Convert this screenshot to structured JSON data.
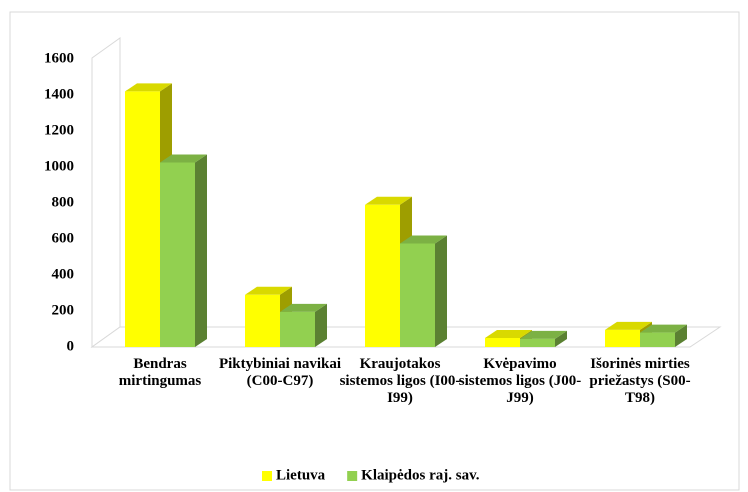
{
  "chart_data": {
    "type": "bar3d",
    "categories": [
      "Bendras mirtingumas",
      "Piktybiniai navikai (C00-C97)",
      "Kraujotakos sistemos ligos (I00-I99)",
      "Kvėpavimo sistemos ligos (J00-J99)",
      "Išorinės mirties priežastys (S00-T98)"
    ],
    "series": [
      {
        "name": "Lietuva",
        "color": "#ffff00",
        "values": [
          1420,
          290,
          790,
          50,
          95
        ]
      },
      {
        "name": "Klaipėdos raj. sav.",
        "color": "#92d050",
        "values": [
          1025,
          195,
          575,
          45,
          80
        ]
      }
    ],
    "ylim": [
      0,
      1600
    ],
    "yticks": [
      0,
      200,
      400,
      600,
      800,
      1000,
      1200,
      1400,
      1600
    ],
    "legend": "bottom"
  }
}
